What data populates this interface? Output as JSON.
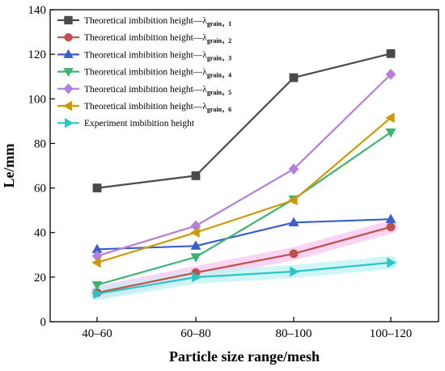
{
  "chart_data": {
    "type": "line",
    "categories": [
      "40–60",
      "60–80",
      "80–100",
      "100–120"
    ],
    "xlabel": "Particle size range/mesh",
    "ylabel": "Le/mm",
    "ylim": [
      0,
      140
    ],
    "yticks": [
      0,
      20,
      40,
      60,
      80,
      100,
      120,
      140
    ],
    "grid": false,
    "legend_position": "top-left",
    "legend_base": "Theoretical imbibition height—λ",
    "legend_sub_prefix": "grain，",
    "series": [
      {
        "name": "Theoretical imbibition height—λgrain，1",
        "sub": "1",
        "color": "#4a4a4a",
        "marker": "square",
        "values": [
          60,
          65.5,
          109.5,
          120.3
        ]
      },
      {
        "name": "Theoretical imbibition height—λgrain，2",
        "sub": "2",
        "color": "#c0504d",
        "marker": "circle",
        "values": [
          13,
          22,
          30.5,
          42.5
        ]
      },
      {
        "name": "Theoretical imbibition height—λgrain，3",
        "sub": "3",
        "color": "#3a5fcd",
        "marker": "triangle-up",
        "values": [
          32.5,
          34,
          44.5,
          46
        ]
      },
      {
        "name": "Theoretical imbibition height—λgrain，4",
        "sub": "4",
        "color": "#3cb371",
        "marker": "triangle-down",
        "values": [
          16.5,
          29,
          55,
          85
        ]
      },
      {
        "name": "Theoretical imbibition height—λgrain，5",
        "sub": "5",
        "color": "#b57edc",
        "marker": "diamond",
        "values": [
          29.5,
          43,
          68.5,
          111
        ]
      },
      {
        "name": "Theoretical imbibition height—λgrain，6",
        "sub": "6",
        "color": "#cc9a06",
        "marker": "triangle-left",
        "values": [
          26.5,
          40,
          54.5,
          91.5
        ]
      },
      {
        "name": "Experiment imbibition height",
        "sub": "",
        "color": "#2ec4c4",
        "marker": "triangle-right",
        "values": [
          12.5,
          20,
          22.5,
          26.5
        ]
      }
    ],
    "highlight_band_colors": [
      "#f7c6ef",
      "#bff3f3"
    ]
  }
}
